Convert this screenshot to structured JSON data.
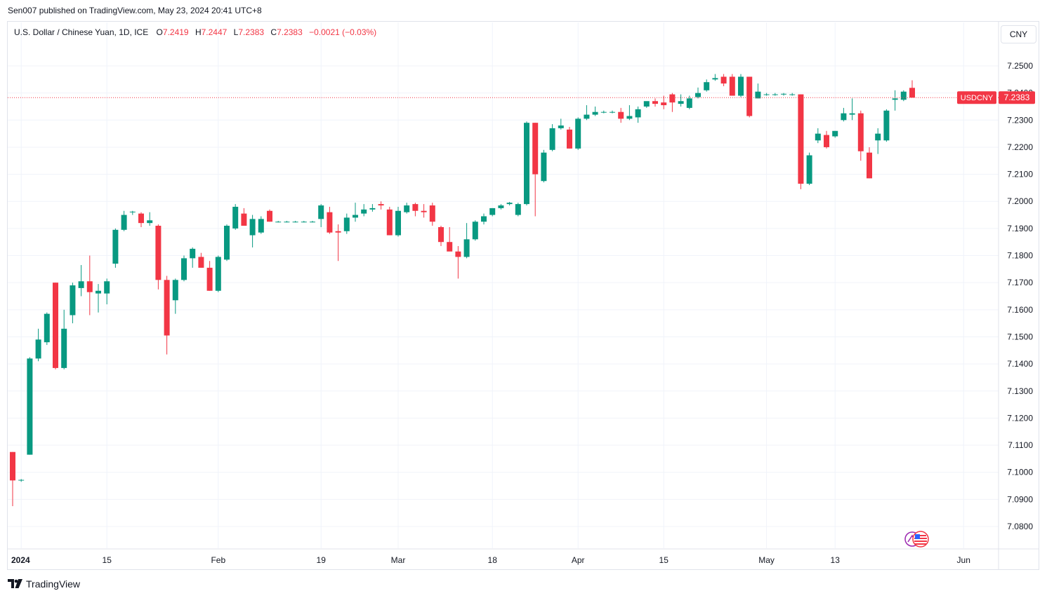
{
  "header": {
    "published": "Sen007 published on TradingView.com, May 23, 2024 20:41 UTC+8"
  },
  "legend": {
    "symbol": "U.S. Dollar / Chinese Yuan, 1D, ICE",
    "o_label": "O",
    "o_value": "7.2419",
    "h_label": "H",
    "h_value": "7.2447",
    "l_label": "L",
    "l_value": "7.2383",
    "c_label": "C",
    "c_value": "7.2383",
    "change": "−0.0021 (−0.03%)"
  },
  "currency_button": "CNY",
  "price_tag": {
    "ticker": "USDCNY",
    "price": "7.2383",
    "color": "#f23645"
  },
  "footer": {
    "brand": "TradingView"
  },
  "colors": {
    "up": "#089981",
    "down": "#f23645",
    "grid": "#f0f3fa"
  },
  "chart_data": {
    "type": "candlestick",
    "ylim": [
      7.075,
      7.255
    ],
    "yticks": [
      "7.0800",
      "7.0900",
      "7.1000",
      "7.1100",
      "7.1200",
      "7.1300",
      "7.1400",
      "7.1500",
      "7.1600",
      "7.1700",
      "7.1800",
      "7.1900",
      "7.2000",
      "7.2100",
      "7.2200",
      "7.2300",
      "7.2400",
      "7.2500"
    ],
    "xticks": [
      {
        "label": "2024",
        "bold": true,
        "idx": 1
      },
      {
        "label": "15",
        "idx": 11
      },
      {
        "label": "Feb",
        "idx": 24
      },
      {
        "label": "19",
        "idx": 36
      },
      {
        "label": "Mar",
        "idx": 45
      },
      {
        "label": "18",
        "idx": 56
      },
      {
        "label": "Apr",
        "idx": 66
      },
      {
        "label": "15",
        "idx": 76
      },
      {
        "label": "May",
        "idx": 88
      },
      {
        "label": "13",
        "idx": 96
      },
      {
        "label": "Jun",
        "idx": 111
      }
    ],
    "last_price": 7.2383,
    "candles": [
      [
        7.1075,
        7.1075,
        7.0875,
        7.097
      ],
      [
        7.097,
        7.0975,
        7.0965,
        7.0972
      ],
      [
        7.1065,
        7.1425,
        7.1065,
        7.142
      ],
      [
        7.142,
        7.153,
        7.141,
        7.149
      ],
      [
        7.148,
        7.159,
        7.147,
        7.1585
      ],
      [
        7.17,
        7.17,
        7.138,
        7.1385
      ],
      [
        7.1385,
        7.16,
        7.138,
        7.153
      ],
      [
        7.158,
        7.17,
        7.155,
        7.169
      ],
      [
        7.168,
        7.1765,
        7.165,
        7.1705
      ],
      [
        7.1705,
        7.18,
        7.158,
        7.1665
      ],
      [
        7.166,
        7.1695,
        7.159,
        7.167
      ],
      [
        7.166,
        7.1715,
        7.162,
        7.1705
      ],
      [
        7.177,
        7.19,
        7.1755,
        7.1895
      ],
      [
        7.1895,
        7.1965,
        7.189,
        7.195
      ],
      [
        7.196,
        7.1965,
        7.195,
        7.1962
      ],
      [
        7.1955,
        7.196,
        7.1905,
        7.192
      ],
      [
        7.192,
        7.196,
        7.191,
        7.193
      ],
      [
        7.191,
        7.1915,
        7.1675,
        7.171
      ],
      [
        7.171,
        7.1725,
        7.1435,
        7.1505
      ],
      [
        7.1635,
        7.1715,
        7.1585,
        7.171
      ],
      [
        7.171,
        7.18,
        7.1705,
        7.179
      ],
      [
        7.179,
        7.183,
        7.1755,
        7.1825
      ],
      [
        7.1795,
        7.181,
        7.1755,
        7.1755
      ],
      [
        7.1755,
        7.178,
        7.167,
        7.167
      ],
      [
        7.167,
        7.18,
        7.1665,
        7.1795
      ],
      [
        7.1785,
        7.1915,
        7.178,
        7.191
      ],
      [
        7.19,
        7.199,
        7.1895,
        7.198
      ],
      [
        7.1955,
        7.1975,
        7.191,
        7.191
      ],
      [
        7.1875,
        7.195,
        7.183,
        7.1935
      ],
      [
        7.1885,
        7.1945,
        7.188,
        7.1935
      ],
      [
        7.1965,
        7.197,
        7.1925,
        7.1925
      ],
      [
        7.1925,
        7.1928,
        7.1922,
        7.1925
      ],
      [
        7.1925,
        7.1928,
        7.1922,
        7.1925
      ],
      [
        7.1925,
        7.1928,
        7.1922,
        7.1925
      ],
      [
        7.1925,
        7.1928,
        7.1922,
        7.1925
      ],
      [
        7.1925,
        7.1928,
        7.1922,
        7.1925
      ],
      [
        7.1935,
        7.199,
        7.1905,
        7.1985
      ],
      [
        7.196,
        7.198,
        7.188,
        7.1885
      ],
      [
        7.189,
        7.1915,
        7.178,
        7.1885
      ],
      [
        7.189,
        7.1955,
        7.188,
        7.194
      ],
      [
        7.194,
        7.1995,
        7.1925,
        7.195
      ],
      [
        7.1955,
        7.199,
        7.1945,
        7.197
      ],
      [
        7.197,
        7.199,
        7.1962,
        7.1975
      ],
      [
        7.199,
        7.2,
        7.197,
        7.1985
      ],
      [
        7.197,
        7.198,
        7.1875,
        7.1875
      ],
      [
        7.1875,
        7.198,
        7.187,
        7.1965
      ],
      [
        7.196,
        7.1995,
        7.1955,
        7.1985
      ],
      [
        7.199,
        7.1995,
        7.1945,
        7.1965
      ],
      [
        7.1965,
        7.199,
        7.194,
        7.196
      ],
      [
        7.1985,
        7.1995,
        7.191,
        7.1925
      ],
      [
        7.1905,
        7.191,
        7.1835,
        7.185
      ],
      [
        7.185,
        7.1905,
        7.182,
        7.1815
      ],
      [
        7.1815,
        7.1835,
        7.1715,
        7.1795
      ],
      [
        7.1795,
        7.192,
        7.179,
        7.186
      ],
      [
        7.186,
        7.193,
        7.1855,
        7.1925
      ],
      [
        7.1925,
        7.1955,
        7.1915,
        7.1945
      ],
      [
        7.195,
        7.1975,
        7.1945,
        7.1975
      ],
      [
        7.1975,
        7.199,
        7.197,
        7.1985
      ],
      [
        7.199,
        7.1998,
        7.1985,
        7.1995
      ],
      [
        7.195,
        7.1995,
        7.1945,
        7.199
      ],
      [
        7.199,
        7.2295,
        7.1985,
        7.229
      ],
      [
        7.229,
        7.229,
        7.1945,
        7.21
      ],
      [
        7.2075,
        7.219,
        7.207,
        7.218
      ],
      [
        7.219,
        7.2285,
        7.2185,
        7.227
      ],
      [
        7.227,
        7.2305,
        7.2265,
        7.228
      ],
      [
        7.2265,
        7.2275,
        7.2195,
        7.2195
      ],
      [
        7.2195,
        7.231,
        7.219,
        7.2305
      ],
      [
        7.2305,
        7.2355,
        7.23,
        7.232
      ],
      [
        7.232,
        7.235,
        7.2315,
        7.233
      ],
      [
        7.233,
        7.2335,
        7.2325,
        7.233
      ],
      [
        7.233,
        7.2335,
        7.2325,
        7.233
      ],
      [
        7.233,
        7.2345,
        7.229,
        7.2305
      ],
      [
        7.2305,
        7.2355,
        7.23,
        7.2315
      ],
      [
        7.231,
        7.235,
        7.229,
        7.234
      ],
      [
        7.235,
        7.2365,
        7.2345,
        7.237
      ],
      [
        7.237,
        7.238,
        7.235,
        7.236
      ],
      [
        7.2365,
        7.239,
        7.234,
        7.2355
      ],
      [
        7.2395,
        7.24,
        7.233,
        7.2365
      ],
      [
        7.236,
        7.2395,
        7.235,
        7.237
      ],
      [
        7.2345,
        7.239,
        7.234,
        7.238
      ],
      [
        7.2385,
        7.242,
        7.238,
        7.24
      ],
      [
        7.241,
        7.245,
        7.2405,
        7.244
      ],
      [
        7.245,
        7.247,
        7.2445,
        7.2455
      ],
      [
        7.246,
        7.247,
        7.2425,
        7.2435
      ],
      [
        7.246,
        7.247,
        7.239,
        7.239
      ],
      [
        7.239,
        7.247,
        7.2385,
        7.246
      ],
      [
        7.246,
        7.246,
        7.231,
        7.2315
      ],
      [
        7.238,
        7.2435,
        7.238,
        7.2405
      ],
      [
        7.2395,
        7.24,
        7.239,
        7.2395
      ],
      [
        7.2395,
        7.24,
        7.239,
        7.2395
      ],
      [
        7.2395,
        7.24,
        7.239,
        7.2397
      ],
      [
        7.2395,
        7.24,
        7.239,
        7.2395
      ],
      [
        7.2395,
        7.2395,
        7.2045,
        7.2065
      ],
      [
        7.2065,
        7.218,
        7.206,
        7.217
      ],
      [
        7.2225,
        7.227,
        7.2215,
        7.225
      ],
      [
        7.2245,
        7.226,
        7.2195,
        7.22
      ],
      [
        7.224,
        7.226,
        7.2235,
        7.226
      ],
      [
        7.23,
        7.2345,
        7.2295,
        7.2325
      ],
      [
        7.232,
        7.238,
        7.23,
        7.2325
      ],
      [
        7.2325,
        7.2335,
        7.215,
        7.2185
      ],
      [
        7.218,
        7.22,
        7.2085,
        7.2085
      ],
      [
        7.2225,
        7.227,
        7.2175,
        7.225
      ],
      [
        7.2225,
        7.234,
        7.222,
        7.2335
      ],
      [
        7.2375,
        7.241,
        7.2335,
        7.238
      ],
      [
        7.2375,
        7.241,
        7.237,
        7.2405
      ],
      [
        7.2419,
        7.2447,
        7.2383,
        7.2383
      ]
    ]
  }
}
